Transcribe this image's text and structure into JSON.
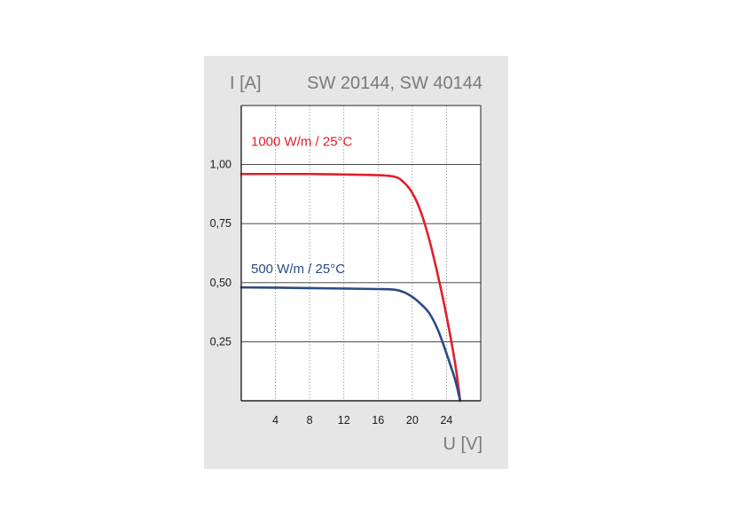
{
  "chart_data": {
    "type": "line",
    "title": "SW 20144, SW 40144",
    "ylabel": "I [A]",
    "xlabel": "U [V]",
    "xlim": [
      0,
      28
    ],
    "ylim": [
      0,
      1.25
    ],
    "x_ticks": [
      4,
      8,
      12,
      16,
      20,
      24
    ],
    "x_tick_labels": [
      "4",
      "8",
      "12",
      "16",
      "20",
      "24"
    ],
    "y_ticks": [
      0.25,
      0.5,
      0.75,
      1.0
    ],
    "y_tick_labels": [
      "0,25",
      "0,50",
      "0,75",
      "1,00"
    ],
    "grid": true,
    "series": [
      {
        "name": "1000 W/m  / 25°C",
        "color": "#e0202a",
        "x": [
          0,
          4,
          8,
          12,
          16,
          18,
          19,
          20,
          21,
          22,
          23,
          24,
          25,
          25.6
        ],
        "y": [
          0.96,
          0.96,
          0.96,
          0.958,
          0.955,
          0.948,
          0.925,
          0.88,
          0.8,
          0.68,
          0.53,
          0.36,
          0.16,
          0.0
        ]
      },
      {
        "name": "500 W/m   / 25°C",
        "color": "#2b4a87",
        "x": [
          0,
          4,
          8,
          12,
          16,
          18,
          19,
          20,
          21,
          22,
          23,
          24,
          25,
          25.6
        ],
        "y": [
          0.48,
          0.479,
          0.477,
          0.475,
          0.473,
          0.47,
          0.46,
          0.44,
          0.41,
          0.37,
          0.3,
          0.2,
          0.09,
          0.0
        ]
      }
    ]
  }
}
